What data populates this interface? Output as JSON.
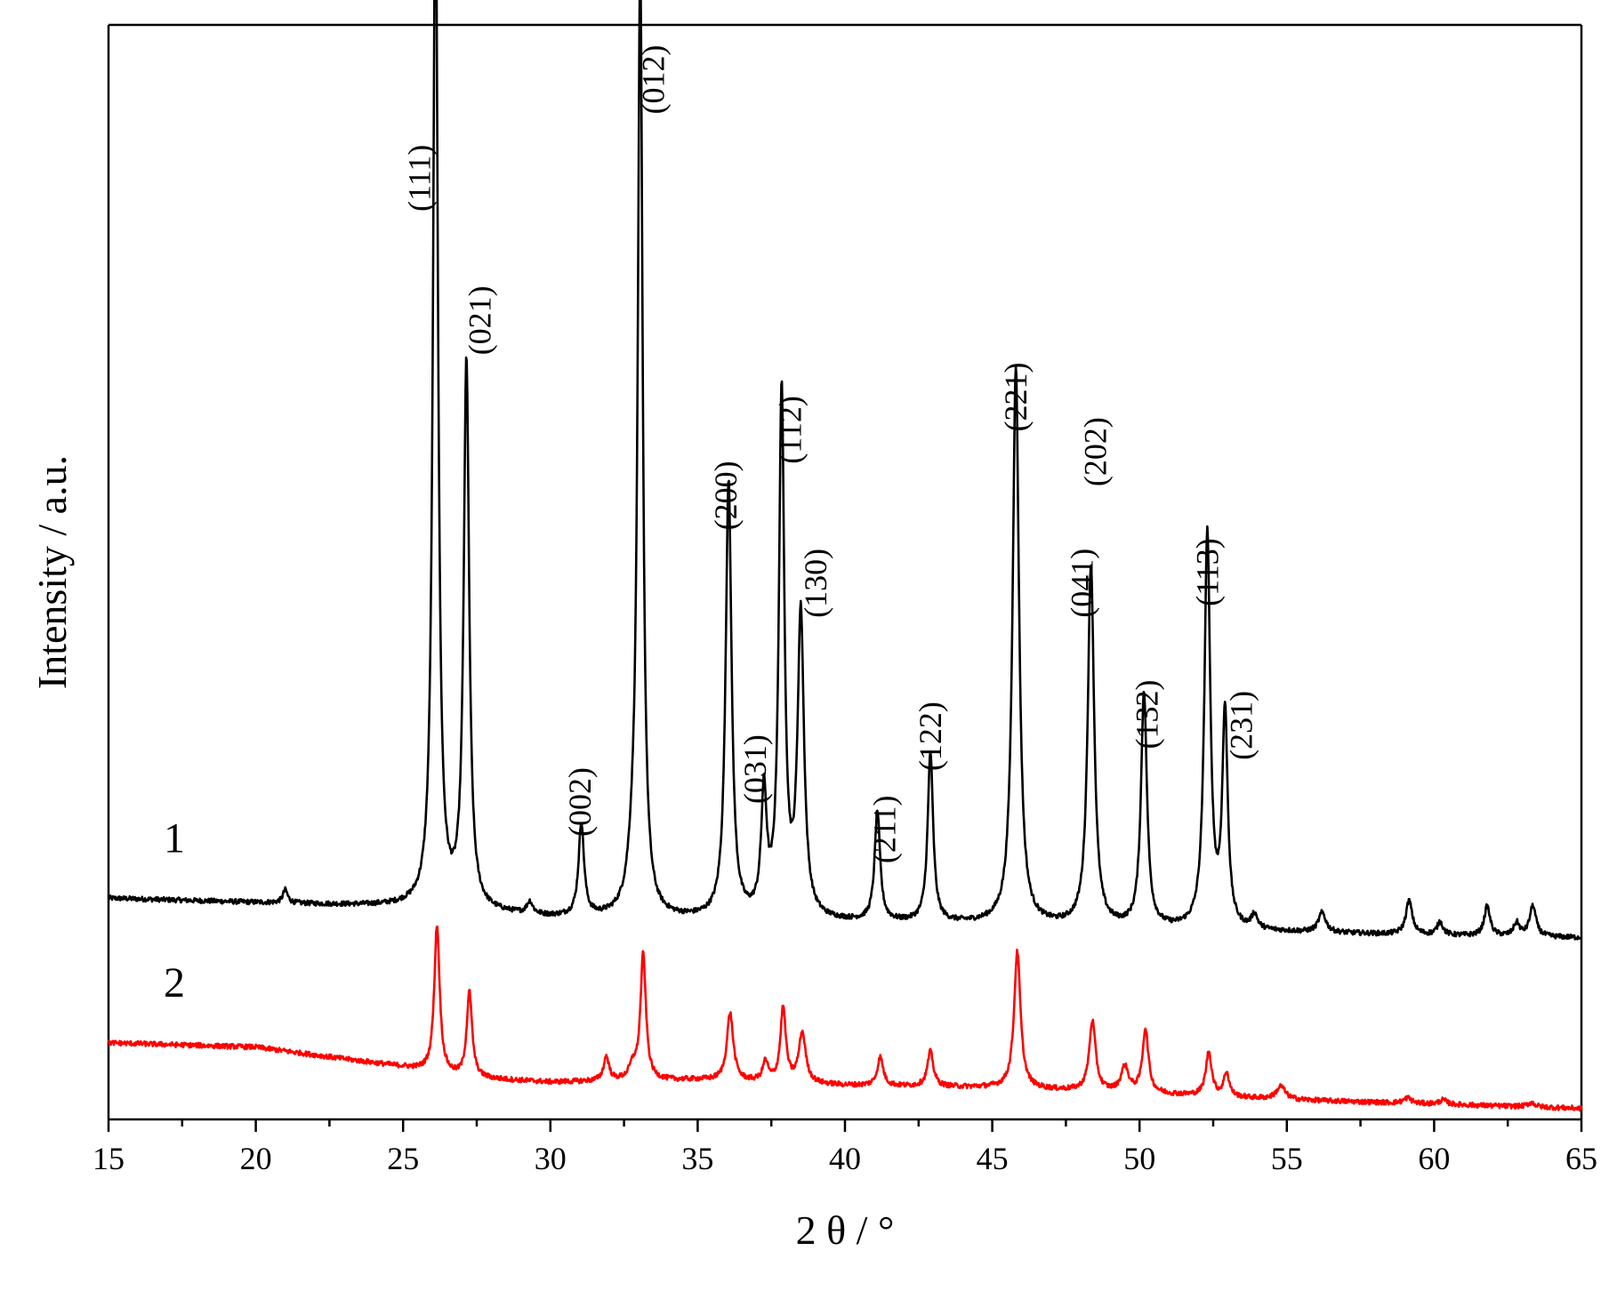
{
  "chart_data": {
    "type": "line",
    "xlabel": "2 θ / °",
    "ylabel": "Intensity / a.u.",
    "xlim": [
      15,
      65
    ],
    "ylim": [
      0,
      100
    ],
    "x_ticks": [
      15,
      20,
      25,
      30,
      35,
      40,
      45,
      50,
      55,
      60,
      65
    ],
    "grid": false,
    "series_colors": [
      "#000000",
      "#ff0000"
    ],
    "series": [
      {
        "label": "1",
        "color": "#000000",
        "offset": 19,
        "baseline": [
          [
            15,
            1.2
          ],
          [
            20,
            0.8
          ],
          [
            25,
            0.4
          ],
          [
            30,
            -0.6
          ],
          [
            35,
            -0.8
          ],
          [
            40,
            -1.0
          ],
          [
            45,
            -1.2
          ],
          [
            50,
            -1.6
          ],
          [
            55,
            -1.9
          ],
          [
            60,
            -2.2
          ],
          [
            65,
            -2.4
          ]
        ],
        "peaks": [
          {
            "x": 21.0,
            "h": 1.2,
            "w": 0.1
          },
          {
            "x": 26.1,
            "h": 95.5,
            "w": 0.1
          },
          {
            "x": 27.15,
            "h": 50.0,
            "w": 0.11
          },
          {
            "x": 29.3,
            "h": 1.1,
            "w": 0.12
          },
          {
            "x": 31.05,
            "h": 8.5,
            "w": 0.11
          },
          {
            "x": 32.8,
            "h": 3.5,
            "w": 0.2
          },
          {
            "x": 33.05,
            "h": 86.0,
            "w": 0.1
          },
          {
            "x": 36.05,
            "h": 40.0,
            "w": 0.12
          },
          {
            "x": 37.25,
            "h": 11.0,
            "w": 0.11
          },
          {
            "x": 37.85,
            "h": 48.0,
            "w": 0.11
          },
          {
            "x": 38.5,
            "h": 27.5,
            "w": 0.13
          },
          {
            "x": 41.1,
            "h": 10.0,
            "w": 0.11
          },
          {
            "x": 42.9,
            "h": 15.5,
            "w": 0.11
          },
          {
            "x": 45.8,
            "h": 51.0,
            "w": 0.13
          },
          {
            "x": 48.35,
            "h": 33.0,
            "w": 0.13
          },
          {
            "x": 50.15,
            "h": 21.5,
            "w": 0.12
          },
          {
            "x": 52.3,
            "h": 36.0,
            "w": 0.12
          },
          {
            "x": 52.9,
            "h": 19.5,
            "w": 0.11
          },
          {
            "x": 53.9,
            "h": 1.3,
            "w": 0.12
          },
          {
            "x": 56.2,
            "h": 1.8,
            "w": 0.15
          },
          {
            "x": 59.15,
            "h": 3.1,
            "w": 0.13
          },
          {
            "x": 60.2,
            "h": 1.2,
            "w": 0.12
          },
          {
            "x": 61.8,
            "h": 2.7,
            "w": 0.12
          },
          {
            "x": 62.8,
            "h": 1.2,
            "w": 0.12
          },
          {
            "x": 63.35,
            "h": 2.8,
            "w": 0.13
          }
        ]
      },
      {
        "label": "2",
        "color": "#ff0000",
        "offset": 7,
        "baseline": [
          [
            15,
            0.0
          ],
          [
            20,
            -0.4
          ],
          [
            25,
            -2.2
          ],
          [
            27,
            -3.2
          ],
          [
            30,
            -3.6
          ],
          [
            35,
            -3.4
          ],
          [
            40,
            -3.9
          ],
          [
            45,
            -4.1
          ],
          [
            50,
            -4.6
          ],
          [
            55,
            -5.2
          ],
          [
            60,
            -5.6
          ],
          [
            65,
            -6.0
          ]
        ],
        "peaks": [
          {
            "x": 26.15,
            "h": 13.5,
            "w": 0.11
          },
          {
            "x": 27.25,
            "h": 7.8,
            "w": 0.11
          },
          {
            "x": 31.9,
            "h": 2.2,
            "w": 0.11
          },
          {
            "x": 32.8,
            "h": 1.2,
            "w": 0.15
          },
          {
            "x": 33.15,
            "h": 11.5,
            "w": 0.11
          },
          {
            "x": 36.1,
            "h": 6.2,
            "w": 0.13
          },
          {
            "x": 37.3,
            "h": 1.8,
            "w": 0.11
          },
          {
            "x": 37.9,
            "h": 6.8,
            "w": 0.11
          },
          {
            "x": 38.55,
            "h": 4.6,
            "w": 0.14
          },
          {
            "x": 41.2,
            "h": 2.6,
            "w": 0.12
          },
          {
            "x": 42.9,
            "h": 3.2,
            "w": 0.12
          },
          {
            "x": 45.85,
            "h": 12.5,
            "w": 0.13
          },
          {
            "x": 48.4,
            "h": 6.4,
            "w": 0.13
          },
          {
            "x": 49.5,
            "h": 2.3,
            "w": 0.15
          },
          {
            "x": 50.2,
            "h": 5.8,
            "w": 0.12
          },
          {
            "x": 52.35,
            "h": 4.0,
            "w": 0.12
          },
          {
            "x": 52.95,
            "h": 2.2,
            "w": 0.11
          },
          {
            "x": 54.8,
            "h": 1.2,
            "w": 0.18
          },
          {
            "x": 59.1,
            "h": 0.5,
            "w": 0.15
          },
          {
            "x": 60.3,
            "h": 0.4,
            "w": 0.15
          },
          {
            "x": 63.3,
            "h": 0.4,
            "w": 0.15
          }
        ]
      }
    ],
    "annotations": [
      {
        "text": "(111)",
        "x": 25.55,
        "y": 86
      },
      {
        "text": "(021)",
        "x": 27.6,
        "y": 73
      },
      {
        "text": "(002)",
        "x": 31.0,
        "y": 29
      },
      {
        "text": "(012)",
        "x": 33.5,
        "y": 95
      },
      {
        "text": "(200)",
        "x": 35.95,
        "y": 57
      },
      {
        "text": "(031)",
        "x": 36.95,
        "y": 32
      },
      {
        "text": "(112)",
        "x": 38.15,
        "y": 63
      },
      {
        "text": "(130)",
        "x": 39.0,
        "y": 49
      },
      {
        "text": "(211)",
        "x": 41.35,
        "y": 26.5
      },
      {
        "text": "(122)",
        "x": 42.9,
        "y": 35
      },
      {
        "text": "(221)",
        "x": 45.8,
        "y": 66
      },
      {
        "text": "(202)",
        "x": 48.5,
        "y": 61
      },
      {
        "text": "(041)",
        "x": 48.05,
        "y": 49
      },
      {
        "text": "(132)",
        "x": 50.25,
        "y": 37
      },
      {
        "text": "(113)",
        "x": 52.3,
        "y": 50
      },
      {
        "text": "(231)",
        "x": 53.45,
        "y": 36
      }
    ]
  }
}
